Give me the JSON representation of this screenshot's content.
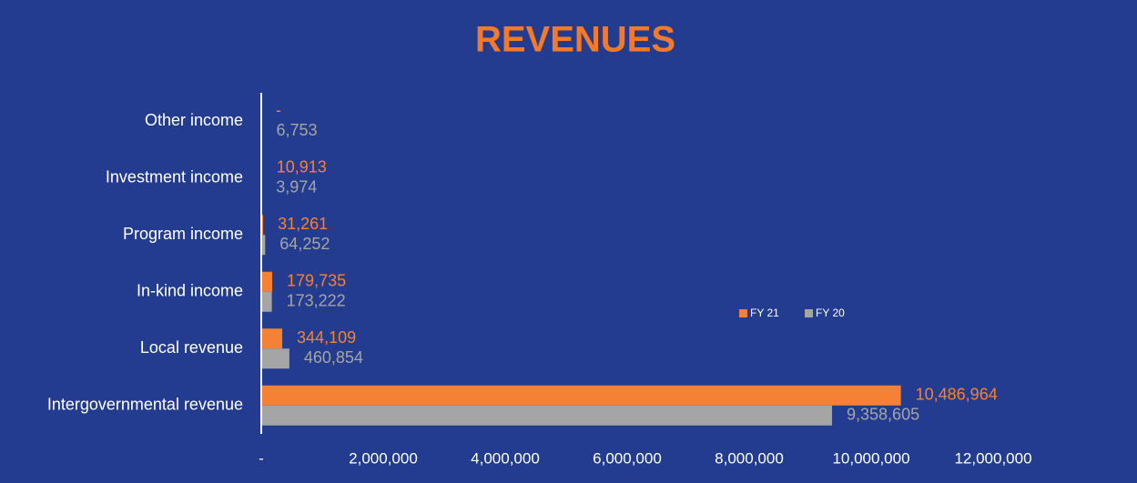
{
  "chart_data": {
    "type": "hbar",
    "title": "REVENUES",
    "categories": [
      "Other income",
      "Investment income",
      "Program income",
      "In-kind income",
      "Local revenue",
      "Intergovernmental revenue"
    ],
    "series": [
      {
        "name": "FY 21",
        "color": "#f58234",
        "values": [
          0,
          10913,
          31261,
          179735,
          344109,
          10486964
        ],
        "value_labels": [
          "-",
          "10,913",
          "31,261",
          "179,735",
          "344,109",
          "10,486,964"
        ]
      },
      {
        "name": "FY 20",
        "color": "#a5a5a5",
        "values": [
          6753,
          3974,
          64252,
          173222,
          460854,
          9358605
        ],
        "value_labels": [
          "6,753",
          "3,974",
          "64,252",
          "173,222",
          "460,854",
          "9,358,605"
        ]
      }
    ],
    "xlim": [
      0,
      12000000
    ],
    "xticks": [
      {
        "value": 0,
        "label": "-"
      },
      {
        "value": 2000000,
        "label": "2,000,000"
      },
      {
        "value": 4000000,
        "label": "4,000,000"
      },
      {
        "value": 6000000,
        "label": "6,000,000"
      },
      {
        "value": 8000000,
        "label": "8,000,000"
      },
      {
        "value": 10000000,
        "label": "10,000,000"
      },
      {
        "value": 12000000,
        "label": "12,000,000"
      }
    ],
    "legend": "right"
  }
}
